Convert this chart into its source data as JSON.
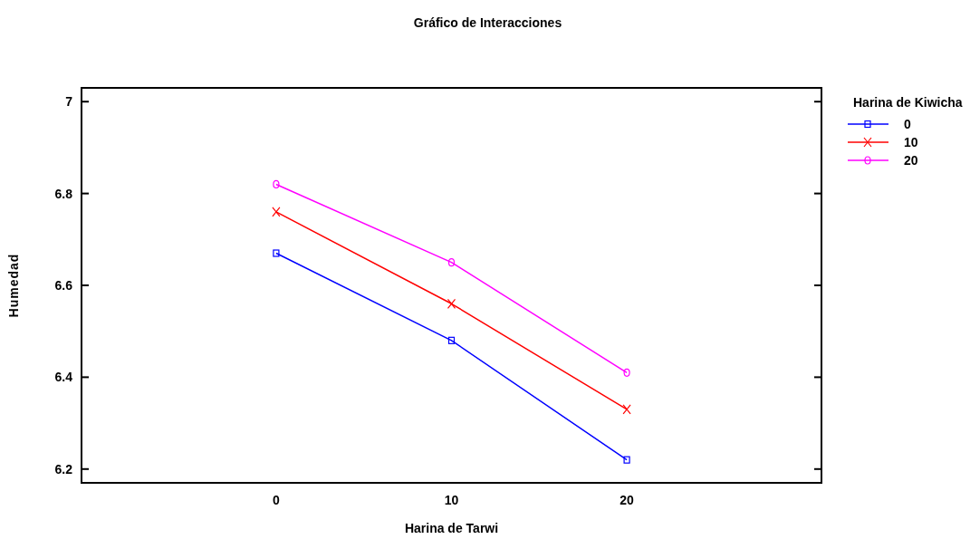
{
  "chart_data": {
    "type": "line",
    "title": "Gráfico de Interacciones",
    "xlabel": "Harina de Tarwi",
    "ylabel": "Humedad",
    "legend_title": "Harina de Kiwicha",
    "x": [
      0,
      10,
      20
    ],
    "xlim": [
      -11.1,
      31.1
    ],
    "xticks": [
      0,
      10,
      20
    ],
    "ylim": [
      6.17,
      7.03
    ],
    "yticks": [
      6.2,
      6.4,
      6.6,
      6.8,
      7
    ],
    "legend": "top right",
    "series": [
      {
        "name": "0",
        "color": "#0000ff",
        "marker": "square",
        "values": [
          6.67,
          6.48,
          6.22
        ]
      },
      {
        "name": "10",
        "color": "#ff0000",
        "marker": "cross",
        "values": [
          6.76,
          6.56,
          6.33
        ]
      },
      {
        "name": "20",
        "color": "#ff00ff",
        "marker": "circle",
        "values": [
          6.82,
          6.65,
          6.41
        ]
      }
    ]
  }
}
